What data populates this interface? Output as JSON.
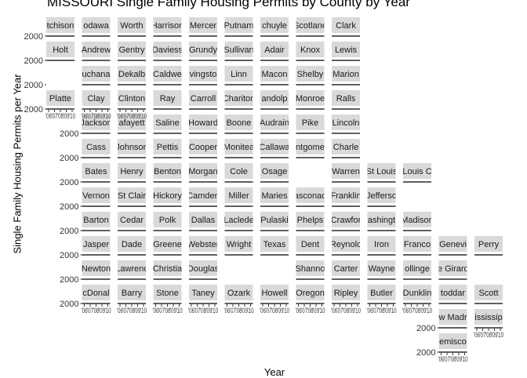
{
  "chart_data": {
    "type": "small-multiples line",
    "title": "MISSOURI Single Family Housing Permits by County by Year",
    "xlabel": "Year",
    "ylabel": "Single Family Housing Permits per Year",
    "y_tick_label": "2000",
    "x_tick_labels": [
      "'06",
      "'07",
      "'08",
      "'09",
      "'10"
    ],
    "grid": false,
    "background_color": "#ffffff",
    "strip_color": "#d9d9d9",
    "line_color": "#000000",
    "panels": [
      {
        "label": "tchison",
        "row": 0,
        "col": 0
      },
      {
        "label": "odawa",
        "row": 0,
        "col": 1
      },
      {
        "label": "Worth",
        "row": 0,
        "col": 2
      },
      {
        "label": "Harrison",
        "row": 0,
        "col": 3
      },
      {
        "label": "Mercer",
        "row": 0,
        "col": 4
      },
      {
        "label": "Putnam",
        "row": 0,
        "col": 5
      },
      {
        "label": "chuyle",
        "row": 0,
        "col": 6
      },
      {
        "label": "Scotlane",
        "row": 0,
        "col": 7
      },
      {
        "label": "Clark",
        "row": 0,
        "col": 8
      },
      {
        "label": "Holt",
        "row": 1,
        "col": 0
      },
      {
        "label": "Andrew",
        "row": 1,
        "col": 1
      },
      {
        "label": "Gentry",
        "row": 1,
        "col": 2
      },
      {
        "label": "Daviess",
        "row": 1,
        "col": 3
      },
      {
        "label": "Grundy",
        "row": 1,
        "col": 4
      },
      {
        "label": "Sullivan",
        "row": 1,
        "col": 5
      },
      {
        "label": "Adair",
        "row": 1,
        "col": 6
      },
      {
        "label": "Knox",
        "row": 1,
        "col": 7
      },
      {
        "label": "Lewis",
        "row": 1,
        "col": 8
      },
      {
        "label": "uchana",
        "row": 2,
        "col": 1
      },
      {
        "label": "Dekalb",
        "row": 2,
        "col": 2
      },
      {
        "label": "Caldwe",
        "row": 2,
        "col": 3
      },
      {
        "label": "vingsto",
        "row": 2,
        "col": 4
      },
      {
        "label": "Linn",
        "row": 2,
        "col": 5
      },
      {
        "label": "Macon",
        "row": 2,
        "col": 6
      },
      {
        "label": "Shelby",
        "row": 2,
        "col": 7
      },
      {
        "label": "Marion",
        "row": 2,
        "col": 8
      },
      {
        "label": "Platte",
        "row": 3,
        "col": 0
      },
      {
        "label": "Clay",
        "row": 3,
        "col": 1
      },
      {
        "label": "Clinton",
        "row": 3,
        "col": 2
      },
      {
        "label": "Ray",
        "row": 3,
        "col": 3
      },
      {
        "label": "Carroll",
        "row": 3,
        "col": 4
      },
      {
        "label": "Chariton",
        "row": 3,
        "col": 5
      },
      {
        "label": "andolp",
        "row": 3,
        "col": 6
      },
      {
        "label": "Monroe",
        "row": 3,
        "col": 7
      },
      {
        "label": "Ralls",
        "row": 3,
        "col": 8
      },
      {
        "label": "Jackson",
        "row": 4,
        "col": 1
      },
      {
        "label": "afayett",
        "row": 4,
        "col": 2
      },
      {
        "label": "Saline",
        "row": 4,
        "col": 3
      },
      {
        "label": "Howard",
        "row": 4,
        "col": 4
      },
      {
        "label": "Boone",
        "row": 4,
        "col": 5
      },
      {
        "label": "Audrain",
        "row": 4,
        "col": 6
      },
      {
        "label": "Pike",
        "row": 4,
        "col": 7
      },
      {
        "label": "Lincoln",
        "row": 4,
        "col": 8
      },
      {
        "label": "Cass",
        "row": 5,
        "col": 1
      },
      {
        "label": "Johnson",
        "row": 5,
        "col": 2
      },
      {
        "label": "Pettis",
        "row": 5,
        "col": 3
      },
      {
        "label": "Cooper",
        "row": 5,
        "col": 4
      },
      {
        "label": "Monitea",
        "row": 5,
        "col": 5
      },
      {
        "label": "Callawa",
        "row": 5,
        "col": 6
      },
      {
        "label": "ntgome",
        "row": 5,
        "col": 7
      },
      {
        "label": "Charle",
        "row": 5,
        "col": 8
      },
      {
        "label": "Bates",
        "row": 6,
        "col": 1
      },
      {
        "label": "Henry",
        "row": 6,
        "col": 2
      },
      {
        "label": "Benton",
        "row": 6,
        "col": 3
      },
      {
        "label": "Morgan",
        "row": 6,
        "col": 4
      },
      {
        "label": "Cole",
        "row": 6,
        "col": 5
      },
      {
        "label": "Osage",
        "row": 6,
        "col": 6
      },
      {
        "label": "Warren",
        "row": 6,
        "col": 8
      },
      {
        "label": "St Louis",
        "row": 6,
        "col": 9
      },
      {
        "label": "Louis C",
        "row": 6,
        "col": 10
      },
      {
        "label": "Vernon",
        "row": 7,
        "col": 1
      },
      {
        "label": "St Clair",
        "row": 7,
        "col": 2
      },
      {
        "label": "Hickory",
        "row": 7,
        "col": 3
      },
      {
        "label": "Camden",
        "row": 7,
        "col": 4
      },
      {
        "label": "Miller",
        "row": 7,
        "col": 5
      },
      {
        "label": "Maries",
        "row": 7,
        "col": 6
      },
      {
        "label": "asconad",
        "row": 7,
        "col": 7
      },
      {
        "label": "Franklin",
        "row": 7,
        "col": 8
      },
      {
        "label": "Jefferso",
        "row": 7,
        "col": 9
      },
      {
        "label": "Barton",
        "row": 8,
        "col": 1
      },
      {
        "label": "Cedar",
        "row": 8,
        "col": 2
      },
      {
        "label": "Polk",
        "row": 8,
        "col": 3
      },
      {
        "label": "Dallas",
        "row": 8,
        "col": 4
      },
      {
        "label": "Laclede",
        "row": 8,
        "col": 5
      },
      {
        "label": "Pulaski",
        "row": 8,
        "col": 6
      },
      {
        "label": "Phelps",
        "row": 8,
        "col": 7
      },
      {
        "label": "Crawfor",
        "row": 8,
        "col": 8
      },
      {
        "label": "ashingt",
        "row": 8,
        "col": 9
      },
      {
        "label": "Madison",
        "row": 8,
        "col": 10
      },
      {
        "label": "Jasper",
        "row": 9,
        "col": 1
      },
      {
        "label": "Dade",
        "row": 9,
        "col": 2
      },
      {
        "label": "Greene",
        "row": 9,
        "col": 3
      },
      {
        "label": "Webster",
        "row": 9,
        "col": 4
      },
      {
        "label": "Wright",
        "row": 9,
        "col": 5
      },
      {
        "label": "Texas",
        "row": 9,
        "col": 6
      },
      {
        "label": "Dent",
        "row": 9,
        "col": 7
      },
      {
        "label": "Reynold",
        "row": 9,
        "col": 8
      },
      {
        "label": "Iron",
        "row": 9,
        "col": 9
      },
      {
        "label": "Franco",
        "row": 9,
        "col": 10
      },
      {
        "label": "Genevi",
        "row": 9,
        "col": 11
      },
      {
        "label": "Perry",
        "row": 9,
        "col": 12
      },
      {
        "label": "Newton",
        "row": 10,
        "col": 1
      },
      {
        "label": "Lawrenc",
        "row": 10,
        "col": 2
      },
      {
        "label": "Christia",
        "row": 10,
        "col": 3
      },
      {
        "label": "Douglas",
        "row": 10,
        "col": 4
      },
      {
        "label": "Shanno",
        "row": 10,
        "col": 7
      },
      {
        "label": "Carter",
        "row": 10,
        "col": 8
      },
      {
        "label": "Wayne",
        "row": 10,
        "col": 9
      },
      {
        "label": "ollinge",
        "row": 10,
        "col": 10
      },
      {
        "label": "e Girarc",
        "row": 10,
        "col": 11
      },
      {
        "label": "cDonal",
        "row": 11,
        "col": 1
      },
      {
        "label": "Barry",
        "row": 11,
        "col": 2
      },
      {
        "label": "Stone",
        "row": 11,
        "col": 3
      },
      {
        "label": "Taney",
        "row": 11,
        "col": 4
      },
      {
        "label": "Ozark",
        "row": 11,
        "col": 5
      },
      {
        "label": "Howell",
        "row": 11,
        "col": 6
      },
      {
        "label": "Oregon",
        "row": 11,
        "col": 7
      },
      {
        "label": "Ripley",
        "row": 11,
        "col": 8
      },
      {
        "label": "Butler",
        "row": 11,
        "col": 9
      },
      {
        "label": "Dunklin",
        "row": 11,
        "col": 10
      },
      {
        "label": "toddar",
        "row": 11,
        "col": 11
      },
      {
        "label": "Scott",
        "row": 11,
        "col": 12
      },
      {
        "label": "w Madr",
        "row": 12,
        "col": 11
      },
      {
        "label": "ississip",
        "row": 12,
        "col": 12
      },
      {
        "label": "emisco",
        "row": 13,
        "col": 11
      }
    ],
    "y_axis_labels": [
      {
        "row": 0,
        "col": 0
      },
      {
        "row": 1,
        "col": 0
      },
      {
        "row": 2,
        "col": 0
      },
      {
        "row": 3,
        "col": 0
      },
      {
        "row": 4,
        "col": 1
      },
      {
        "row": 5,
        "col": 1
      },
      {
        "row": 6,
        "col": 1
      },
      {
        "row": 7,
        "col": 1
      },
      {
        "row": 8,
        "col": 1
      },
      {
        "row": 9,
        "col": 1
      },
      {
        "row": 10,
        "col": 1
      },
      {
        "row": 11,
        "col": 1
      },
      {
        "row": 12,
        "col": 11
      },
      {
        "row": 13,
        "col": 11
      }
    ],
    "x_axis_labels": [
      {
        "row": 3,
        "col": 0
      },
      {
        "row": 3,
        "col": 1
      },
      {
        "row": 3,
        "col": 2
      },
      {
        "row": 11,
        "col": 1
      },
      {
        "row": 11,
        "col": 2
      },
      {
        "row": 11,
        "col": 3
      },
      {
        "row": 11,
        "col": 4
      },
      {
        "row": 11,
        "col": 5
      },
      {
        "row": 11,
        "col": 6
      },
      {
        "row": 11,
        "col": 7
      },
      {
        "row": 11,
        "col": 8
      },
      {
        "row": 11,
        "col": 9
      },
      {
        "row": 11,
        "col": 10
      },
      {
        "row": 12,
        "col": 12
      },
      {
        "row": 13,
        "col": 11
      }
    ]
  }
}
